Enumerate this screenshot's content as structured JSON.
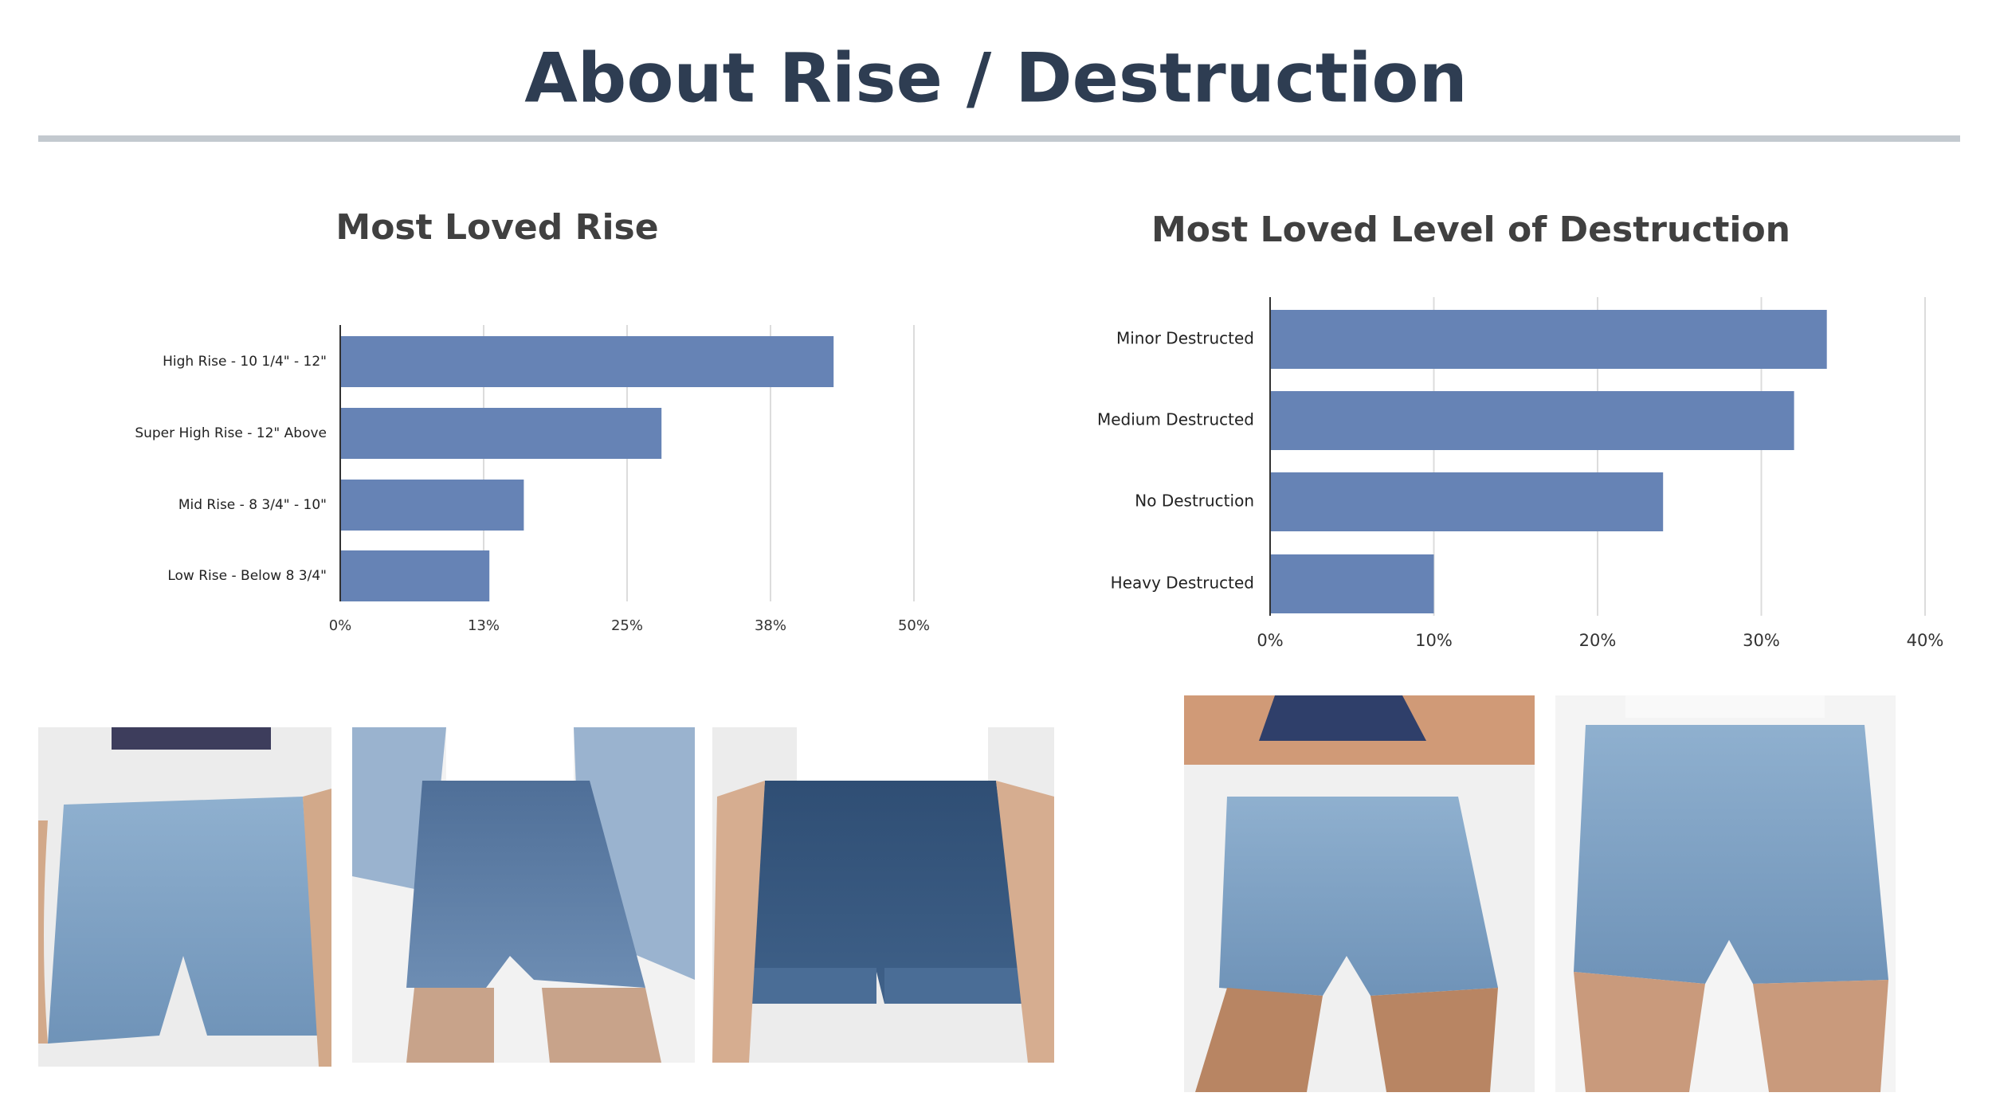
{
  "title": "About Rise / Destruction",
  "chart_data": [
    {
      "type": "bar",
      "orientation": "horizontal",
      "title": "Most Loved Rise",
      "categories": [
        "High Rise - 10 1/4\" - 12\"",
        "Super High Rise - 12\" Above",
        "Mid Rise - 8 3/4\" - 10\"",
        "Low Rise - Below 8 3/4\""
      ],
      "values": [
        43,
        28,
        16,
        13
      ],
      "color": "#6683b5",
      "xlim": [
        0,
        50
      ],
      "xticks": [
        {
          "value": 0,
          "label": "0%"
        },
        {
          "value": 12.5,
          "label": "13%"
        },
        {
          "value": 25,
          "label": "25%"
        },
        {
          "value": 37.5,
          "label": "38%"
        },
        {
          "value": 50,
          "label": "50%"
        }
      ],
      "grid": true
    },
    {
      "type": "bar",
      "orientation": "horizontal",
      "title": "Most Loved Level of Destruction",
      "categories": [
        "Minor Destructed",
        "Medium Destructed",
        "No Destruction",
        "Heavy Destructed"
      ],
      "values": [
        34,
        32,
        24,
        10
      ],
      "color": "#6683b5",
      "xlim": [
        0,
        40
      ],
      "xticks": [
        {
          "value": 0,
          "label": "0%"
        },
        {
          "value": 10,
          "label": "10%"
        },
        {
          "value": 20,
          "label": "20%"
        },
        {
          "value": 30,
          "label": "30%"
        },
        {
          "value": 40,
          "label": "40%"
        }
      ],
      "grid": true
    }
  ]
}
